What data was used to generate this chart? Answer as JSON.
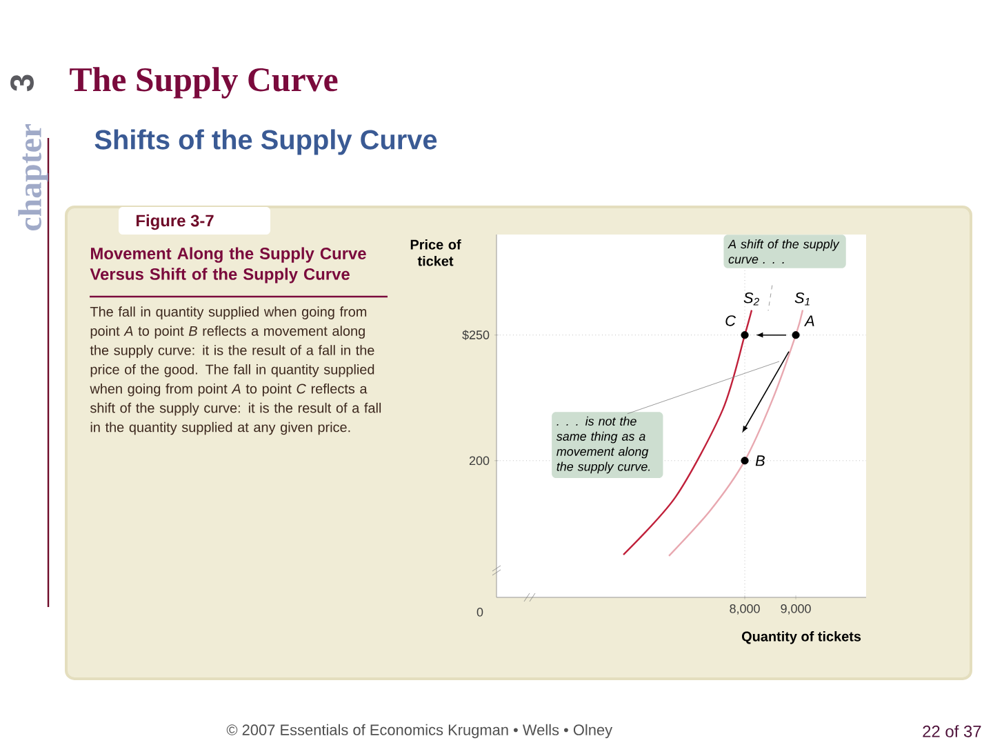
{
  "chart_data": {
    "type": "line",
    "title": "The Supply Curve",
    "subtitle": "Shifts of the Supply Curve",
    "xlabel": "Quantity of tickets",
    "ylabel": "Price of ticket",
    "xlim": [
      3135,
      10378
    ],
    "ylim": [
      145.6,
      290
    ],
    "xticks": [
      {
        "value": 8000,
        "label": "8,000"
      },
      {
        "value": 9000,
        "label": "9,000"
      }
    ],
    "yticks": [
      200,
      {
        "value": 250,
        "label": "$250"
      }
    ],
    "series": [
      {
        "name": "S$_{1}$",
        "color": "#e8a8b0",
        "x": [
          6514,
          7324,
          8000,
          8541,
          9000,
          9135
        ],
        "values": [
          162.1,
          180.2,
          200,
          224.2,
          250,
          259.9
        ]
      },
      {
        "name": "S$_{2}$",
        "color": "#c0203a",
        "x": [
          5622,
          6649,
          7568,
          8000,
          8135
        ],
        "values": [
          162.6,
          185.7,
          220.3,
          250,
          259.9
        ]
      },
      {
        "type": "scatter",
        "color": "#000000",
        "x": [
          9000,
          8000,
          8000
        ],
        "values": [
          250,
          200,
          250
        ]
      }
    ],
    "ref_lines": [
      {
        "axis": "y",
        "value": 250,
        "line_style": "dotted",
        "color": "#999999"
      },
      {
        "axis": "y",
        "value": 200,
        "line_style": "dotted",
        "color": "#999999"
      },
      {
        "axis": "x",
        "value": 8000,
        "line_style": "dotted",
        "color": "#999999"
      }
    ],
    "annotations": [
      "A",
      "B",
      "C",
      "A shift of the supply curve . . .",
      ". . . is not the same thing as a movement along the supply curve.",
      "chapter",
      "3",
      "Figure 3-7",
      "Movement Along the Supply Curve Versus Shift of the Supply Curve",
      "The fall in quantity supplied when going from point *A* to point *B* reflects a movement along the supply curve: it is the result of a fall in the price of the good. The fall in quantity supplied when going from point *A* to point *C* reflects a shift of the supply curve: it is the result of a fall in the quantity supplied at any given price.",
      "© 2007 Essentials of Economics Krugman • Wells • Olney",
      "22 of 37",
      "0"
    ]
  }
}
